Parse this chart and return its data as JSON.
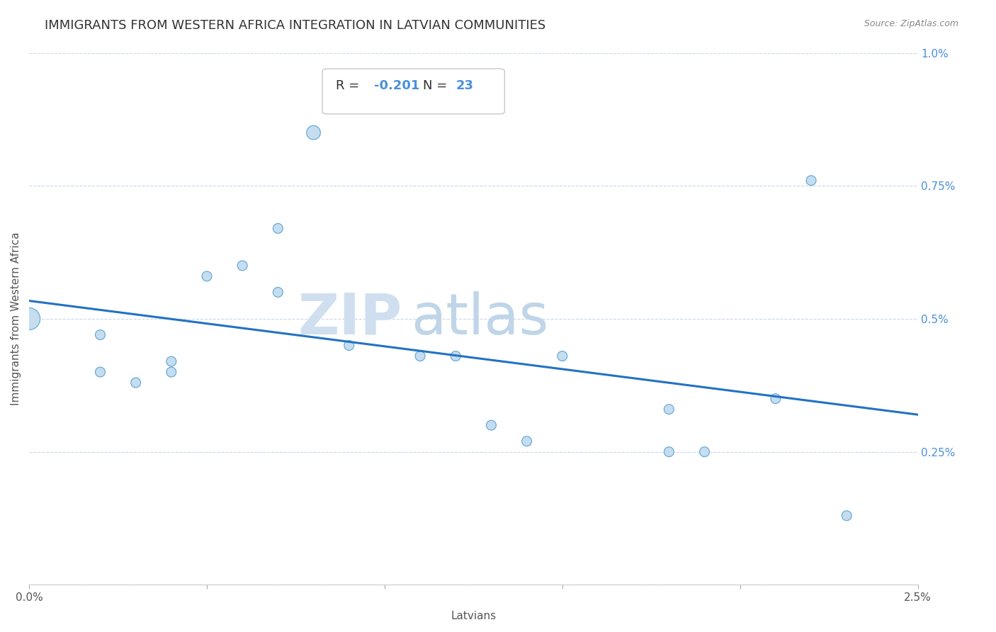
{
  "title": "IMMIGRANTS FROM WESTERN AFRICA INTEGRATION IN LATVIAN COMMUNITIES",
  "source": "Source: ZipAtlas.com",
  "xlabel": "Latvians",
  "ylabel": "Immigrants from Western Africa",
  "R": -0.201,
  "N": 23,
  "xlim": [
    0.0,
    0.025
  ],
  "ylim": [
    0.0,
    0.01
  ],
  "xticks": [
    0.0,
    0.005,
    0.01,
    0.015,
    0.02,
    0.025
  ],
  "xticklabels": [
    "0.0%",
    "",
    "",
    "",
    "",
    "2.5%"
  ],
  "yticks": [
    0.0,
    0.0025,
    0.005,
    0.0075,
    0.01
  ],
  "yticklabels": [
    "",
    "0.25%",
    "0.5%",
    "0.75%",
    "1.0%"
  ],
  "scatter_x": [
    0.0,
    0.002,
    0.002,
    0.003,
    0.004,
    0.004,
    0.005,
    0.006,
    0.007,
    0.007,
    0.008,
    0.009,
    0.011,
    0.012,
    0.013,
    0.014,
    0.015,
    0.018,
    0.018,
    0.019,
    0.021,
    0.022,
    0.023
  ],
  "scatter_y": [
    0.005,
    0.0047,
    0.004,
    0.0038,
    0.0042,
    0.004,
    0.0058,
    0.006,
    0.0067,
    0.0055,
    0.0085,
    0.0045,
    0.0043,
    0.0043,
    0.003,
    0.0027,
    0.0043,
    0.0033,
    0.0025,
    0.0025,
    0.0035,
    0.0076,
    0.0013
  ],
  "scatter_sizes": [
    500,
    100,
    100,
    100,
    100,
    100,
    100,
    100,
    100,
    100,
    200,
    100,
    100,
    100,
    100,
    100,
    100,
    100,
    100,
    100,
    100,
    100,
    100
  ],
  "scatter_color": "#C5DDEF",
  "scatter_edge_color": "#5BA4D4",
  "line_color": "#2272C3",
  "line_width": 2.2,
  "background_color": "#FFFFFF",
  "grid_color": "#C8D8EA",
  "title_fontsize": 13,
  "axis_label_fontsize": 11,
  "tick_fontsize": 11,
  "watermark_zip": "ZIP",
  "watermark_atlas": "atlas",
  "watermark_zip_color": "#D0DFF0",
  "watermark_atlas_color": "#C0D5E8",
  "annotation_box_color": "#FFFFFF",
  "annotation_R_label_color": "#333333",
  "annotation_R_value_color": "#4A90D9",
  "annotation_N_label_color": "#333333",
  "annotation_N_value_color": "#4A90D9"
}
